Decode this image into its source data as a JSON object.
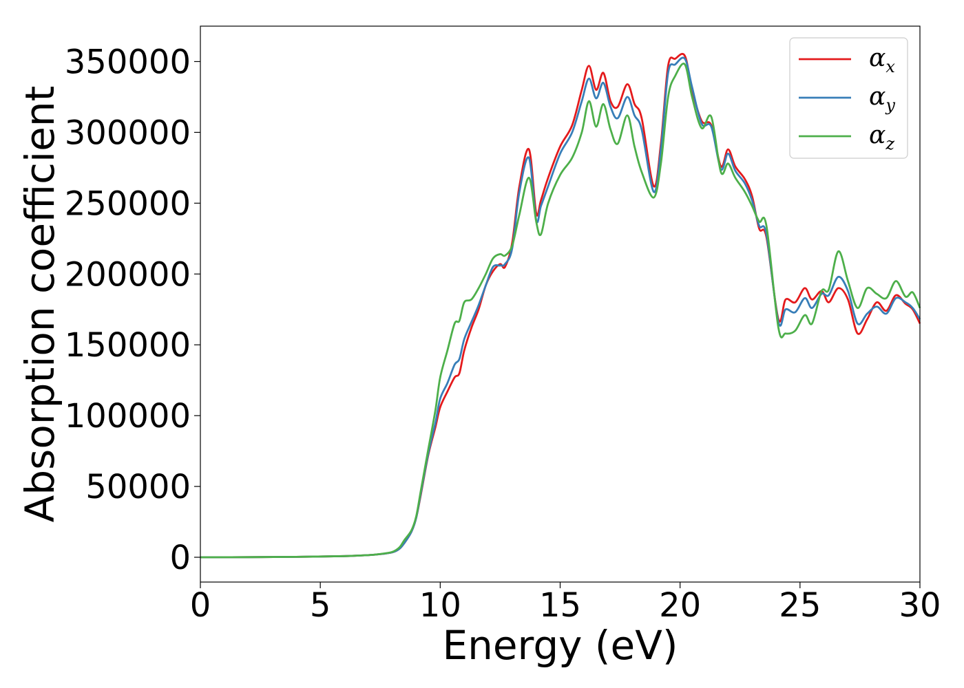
{
  "chart_data": {
    "type": "line",
    "xlabel": "Energy (eV)",
    "ylabel": "Absorption coefficient",
    "xlim": [
      0,
      30
    ],
    "ylim": [
      -17500,
      375000
    ],
    "xticks": [
      0,
      5,
      10,
      15,
      20,
      25,
      30
    ],
    "yticks": [
      0,
      50000,
      100000,
      150000,
      200000,
      250000,
      300000,
      350000
    ],
    "grid": false,
    "legend_position": "top-right",
    "x": [
      0,
      2,
      4,
      6,
      7,
      7.5,
      8,
      8.3,
      8.5,
      8.8,
      9,
      9.2,
      9.5,
      9.8,
      10,
      10.3,
      10.6,
      10.8,
      11,
      11.3,
      11.6,
      11.9,
      12.2,
      12.5,
      12.7,
      13,
      13.3,
      13.7,
      14,
      14.2,
      14.5,
      15,
      15.5,
      15.9,
      16.2,
      16.5,
      16.8,
      17.1,
      17.4,
      17.8,
      18.1,
      18.4,
      18.9,
      19.2,
      19.5,
      19.8,
      20.2,
      20.5,
      20.9,
      21.3,
      21.7,
      22,
      22.3,
      22.7,
      23,
      23.3,
      23.6,
      24.1,
      24.4,
      24.8,
      25.2,
      25.5,
      25.9,
      26.2,
      26.6,
      27,
      27.4,
      27.8,
      28.2,
      28.6,
      29,
      29.4,
      29.7,
      30
    ],
    "series": [
      {
        "name": "α",
        "subscript": "x",
        "color": "#e41a1c",
        "values": [
          0,
          100,
          300,
          800,
          1500,
          2200,
          3500,
          6000,
          10000,
          18000,
          28000,
          45000,
          72000,
          92000,
          106000,
          117000,
          127000,
          130000,
          146000,
          162000,
          175000,
          192000,
          202000,
          207000,
          205000,
          222000,
          262000,
          288000,
          243000,
          252000,
          268000,
          290000,
          305000,
          330000,
          347000,
          330000,
          342000,
          322000,
          318000,
          334000,
          320000,
          310000,
          262000,
          292000,
          347000,
          352000,
          354000,
          330000,
          308000,
          305000,
          276000,
          288000,
          276000,
          267000,
          255000,
          232000,
          226000,
          168000,
          182000,
          180000,
          190000,
          182000,
          188000,
          180000,
          190000,
          182000,
          158000,
          168000,
          180000,
          174000,
          185000,
          179000,
          175000,
          165000
        ]
      },
      {
        "name": "α",
        "subscript": "y",
        "color": "#377eb8",
        "values": [
          0,
          100,
          300,
          800,
          1500,
          2200,
          3500,
          6000,
          10000,
          18000,
          28000,
          46000,
          73000,
          95000,
          112000,
          123000,
          136000,
          140000,
          154000,
          166000,
          178000,
          192000,
          205000,
          206000,
          207000,
          218000,
          258000,
          282000,
          238000,
          248000,
          262000,
          285000,
          300000,
          322000,
          338000,
          324000,
          335000,
          318000,
          310000,
          325000,
          312000,
          302000,
          258000,
          288000,
          342000,
          348000,
          352000,
          332000,
          306000,
          304000,
          274000,
          285000,
          273000,
          264000,
          252000,
          234000,
          228000,
          166000,
          175000,
          173000,
          183000,
          176000,
          186000,
          185000,
          198000,
          188000,
          165000,
          172000,
          177000,
          172000,
          183000,
          180000,
          176000,
          168000
        ]
      },
      {
        "name": "α",
        "subscript": "z",
        "color": "#4daf4a",
        "values": [
          0,
          100,
          300,
          800,
          1500,
          2300,
          3800,
          7000,
          12000,
          19000,
          29000,
          48000,
          76000,
          104000,
          127000,
          146000,
          165000,
          167000,
          180000,
          182000,
          190000,
          200000,
          211000,
          214000,
          213000,
          220000,
          242000,
          268000,
          237000,
          228000,
          250000,
          270000,
          282000,
          300000,
          322000,
          304000,
          320000,
          302000,
          292000,
          312000,
          290000,
          272000,
          254000,
          278000,
          325000,
          340000,
          348000,
          325000,
          303000,
          311000,
          272000,
          278000,
          268000,
          258000,
          248000,
          237000,
          234000,
          162000,
          158000,
          160000,
          171000,
          165000,
          188000,
          189000,
          216000,
          195000,
          176000,
          190000,
          186000,
          183000,
          195000,
          184000,
          187000,
          176000
        ]
      }
    ]
  }
}
